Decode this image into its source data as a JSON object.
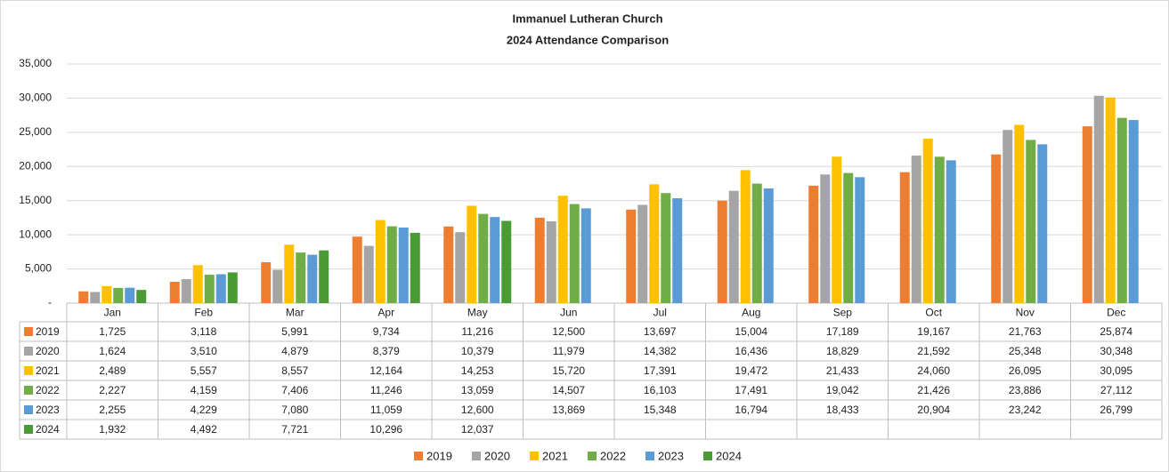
{
  "chart_data": {
    "type": "bar",
    "title": "Immanuel Lutheran Church",
    "subtitle": "2024 Attendance Comparison",
    "categories": [
      "Jan",
      "Feb",
      "Mar",
      "Apr",
      "May",
      "Jun",
      "Jul",
      "Aug",
      "Sep",
      "Oct",
      "Nov",
      "Dec"
    ],
    "series": [
      {
        "name": "2019",
        "color": "#ed7d31",
        "values": [
          1725,
          3118,
          5991,
          9734,
          11216,
          12500,
          13697,
          15004,
          17189,
          19167,
          21763,
          25874
        ],
        "value_labels": [
          "1,725",
          "3,118",
          "5,991",
          "9,734",
          "11,216",
          "12,500",
          "13,697",
          "15,004",
          "17,189",
          "19,167",
          "21,763",
          "25,874"
        ]
      },
      {
        "name": "2020",
        "color": "#a5a5a5",
        "values": [
          1624,
          3510,
          4879,
          8379,
          10379,
          11979,
          14382,
          16436,
          18829,
          21592,
          25348,
          30348
        ],
        "value_labels": [
          "1,624",
          "3,510",
          "4,879",
          "8,379",
          "10,379",
          "11,979",
          "14,382",
          "16,436",
          "18,829",
          "21,592",
          "25,348",
          "30,348"
        ]
      },
      {
        "name": "2021",
        "color": "#ffc000",
        "values": [
          2489,
          5557,
          8557,
          12164,
          14253,
          15720,
          17391,
          19472,
          21433,
          24060,
          26095,
          30095
        ],
        "value_labels": [
          "2,489",
          "5,557",
          "8,557",
          "12,164",
          "14,253",
          "15,720",
          "17,391",
          "19,472",
          "21,433",
          "24,060",
          "26,095",
          "30,095"
        ]
      },
      {
        "name": "2022",
        "color": "#70ad47",
        "values": [
          2227,
          4159,
          7406,
          11246,
          13059,
          14507,
          16103,
          17491,
          19042,
          21426,
          23886,
          27112
        ],
        "value_labels": [
          "2,227",
          "4,159",
          "7,406",
          "11,246",
          "13,059",
          "14,507",
          "16,103",
          "17,491",
          "19,042",
          "21,426",
          "23,886",
          "27,112"
        ]
      },
      {
        "name": "2023",
        "color": "#5b9bd5",
        "values": [
          2255,
          4229,
          7080,
          11059,
          12600,
          13869,
          15348,
          16794,
          18433,
          20904,
          23242,
          26799
        ],
        "value_labels": [
          "2,255",
          "4,229",
          "7,080",
          "11,059",
          "12,600",
          "13,869",
          "15,348",
          "16,794",
          "18,433",
          "20,904",
          "23,242",
          "26,799"
        ]
      },
      {
        "name": "2024",
        "color": "#4a9a35",
        "values": [
          1932,
          4492,
          7721,
          10296,
          12037,
          null,
          null,
          null,
          null,
          null,
          null,
          null
        ],
        "value_labels": [
          "1,932",
          "4,492",
          "7,721",
          "10,296",
          "12,037",
          null,
          null,
          null,
          null,
          null,
          null,
          null
        ]
      }
    ],
    "ylim": [
      0,
      35000
    ],
    "yticks": [
      {
        "value": 0,
        "label": "-"
      },
      {
        "value": 5000,
        "label": "5,000"
      },
      {
        "value": 10000,
        "label": "10,000"
      },
      {
        "value": 15000,
        "label": "15,000"
      },
      {
        "value": 20000,
        "label": "20,000"
      },
      {
        "value": 25000,
        "label": "25,000"
      },
      {
        "value": 30000,
        "label": "30,000"
      },
      {
        "value": 35000,
        "label": "35,000"
      }
    ],
    "grid": true
  }
}
